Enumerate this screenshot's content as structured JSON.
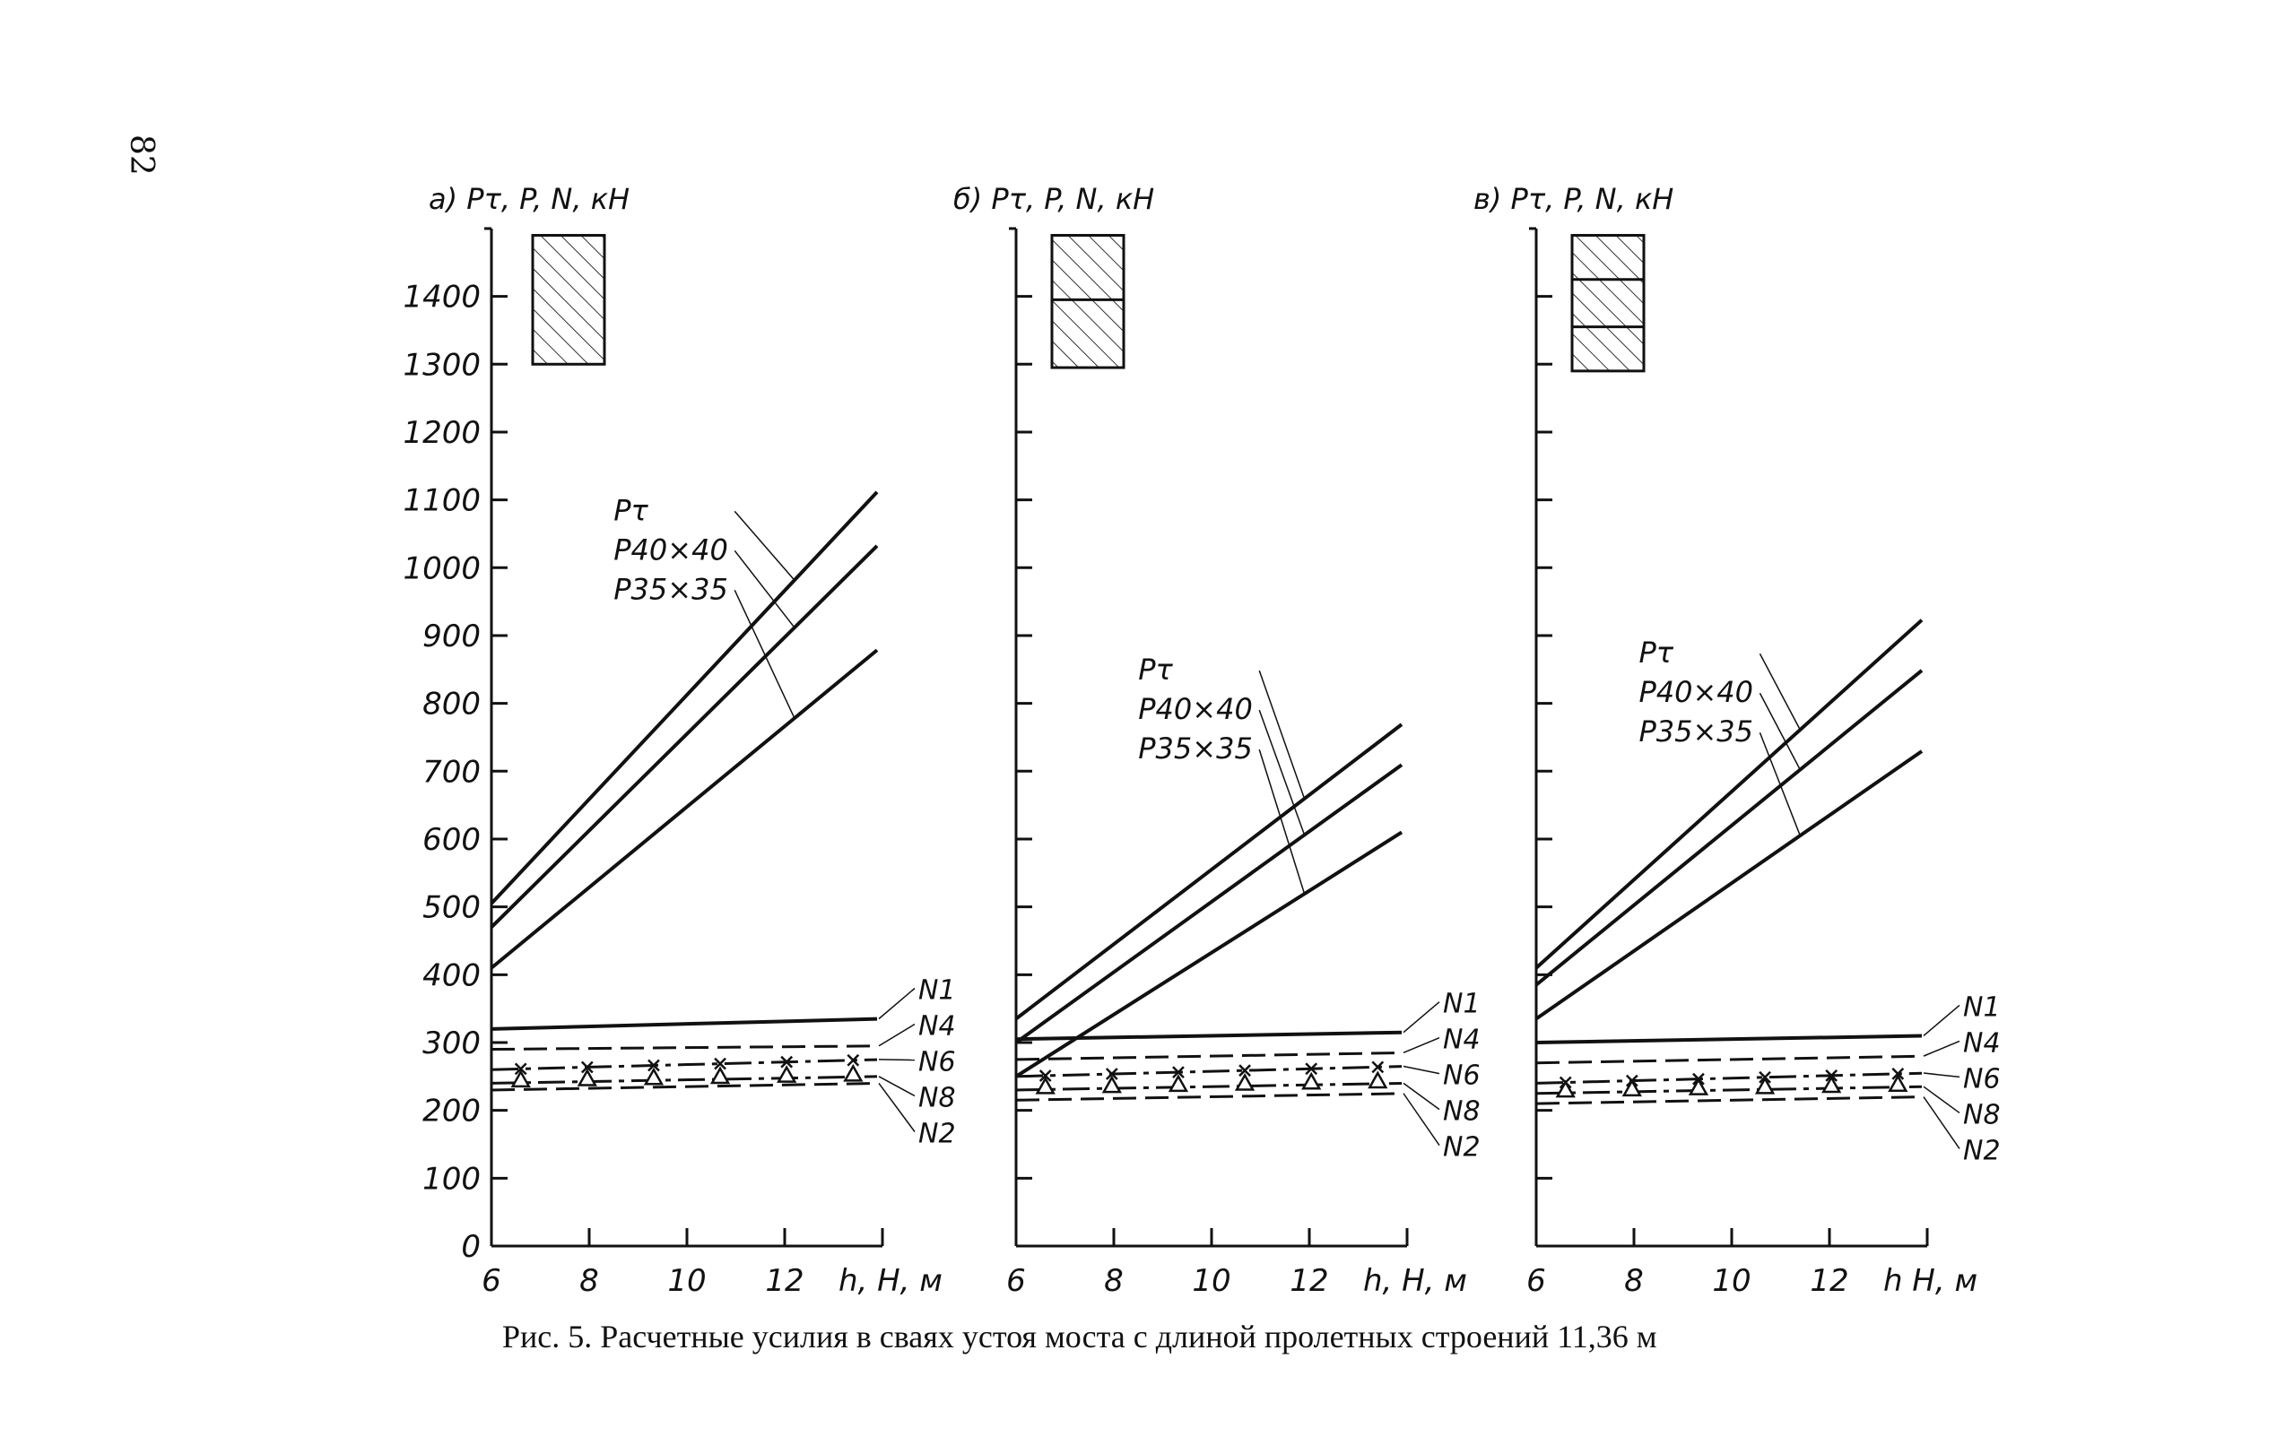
{
  "page_number": "82",
  "caption": "Рис. 5. Расчетные усилия в сваях устоя моста  с длиной пролетных строений 11,36 м",
  "colors": {
    "ink": "#111111",
    "hatch": "#333333",
    "background": "#ffffff"
  },
  "chart_data": [
    {
      "type": "line",
      "panel_label": "а)",
      "ylabel": "Pτ, P, N, кН",
      "xlabel": "h, H, м",
      "x_ticks": [
        "6",
        "8",
        "10",
        "12"
      ],
      "y_ticks": [
        "0",
        "100",
        "200",
        "300",
        "400",
        "500",
        "600",
        "700",
        "800",
        "900",
        "1000",
        "1100",
        "1200",
        "1300",
        "1400"
      ],
      "y_tick_labels_shown": true,
      "xlim": [
        6,
        14
      ],
      "ylim": [
        0,
        1500
      ],
      "range_bars": [
        {
          "y_bottom": 1300,
          "y_top": 1490,
          "dividers": []
        }
      ],
      "series": [
        {
          "name": "Pτ",
          "style": "solid",
          "x": [
            6,
            14
          ],
          "y": [
            505,
            1120
          ]
        },
        {
          "name": "P40×40",
          "style": "solid",
          "x": [
            6,
            14
          ],
          "y": [
            470,
            1040
          ]
        },
        {
          "name": "P35×35",
          "style": "solid",
          "x": [
            6,
            14
          ],
          "y": [
            410,
            885
          ]
        },
        {
          "name": "N1",
          "style": "solid",
          "x": [
            6,
            14
          ],
          "y": [
            320,
            335
          ]
        },
        {
          "name": "N4",
          "style": "dashed",
          "x": [
            6,
            14
          ],
          "y": [
            290,
            295
          ]
        },
        {
          "name": "N6",
          "style": "crosses",
          "x": [
            6,
            14
          ],
          "y": [
            260,
            275
          ]
        },
        {
          "name": "N8",
          "style": "triangles",
          "x": [
            6,
            14
          ],
          "y": [
            240,
            250
          ]
        },
        {
          "name": "N2",
          "style": "dashed",
          "x": [
            6,
            14
          ],
          "y": [
            230,
            240
          ]
        }
      ]
    },
    {
      "type": "line",
      "panel_label": "б)",
      "ylabel": "Pτ, P, N, кН",
      "xlabel": "h, H, м",
      "x_ticks": [
        "6",
        "8",
        "10",
        "12"
      ],
      "y_ticks": [],
      "y_tick_labels_shown": false,
      "xlim": [
        6,
        14
      ],
      "ylim": [
        0,
        1500
      ],
      "range_bars": [
        {
          "y_bottom": 1295,
          "y_top": 1490,
          "dividers": [
            1395
          ]
        }
      ],
      "series": [
        {
          "name": "Pτ",
          "style": "solid",
          "x": [
            6,
            14
          ],
          "y": [
            335,
            775
          ]
        },
        {
          "name": "P40×40",
          "style": "solid",
          "x": [
            6,
            14
          ],
          "y": [
            300,
            715
          ]
        },
        {
          "name": "P35×35",
          "style": "solid",
          "x": [
            6,
            14
          ],
          "y": [
            250,
            615
          ]
        },
        {
          "name": "N1",
          "style": "solid",
          "x": [
            6,
            14
          ],
          "y": [
            305,
            315
          ]
        },
        {
          "name": "N4",
          "style": "dashed",
          "x": [
            6,
            14
          ],
          "y": [
            275,
            285
          ]
        },
        {
          "name": "N6",
          "style": "crosses",
          "x": [
            6,
            14
          ],
          "y": [
            250,
            265
          ]
        },
        {
          "name": "N8",
          "style": "triangles",
          "x": [
            6,
            14
          ],
          "y": [
            230,
            240
          ]
        },
        {
          "name": "N2",
          "style": "dashed",
          "x": [
            6,
            14
          ],
          "y": [
            215,
            225
          ]
        }
      ]
    },
    {
      "type": "line",
      "panel_label": "в)",
      "ylabel": "Pτ, P, N, кН",
      "xlabel": "h H, м",
      "x_ticks": [
        "6",
        "8",
        "10",
        "12"
      ],
      "y_ticks": [],
      "y_tick_labels_shown": false,
      "xlim": [
        6,
        14
      ],
      "ylim": [
        0,
        1500
      ],
      "range_bars": [
        {
          "y_bottom": 1290,
          "y_top": 1490,
          "dividers": [
            1425,
            1355
          ]
        }
      ],
      "series": [
        {
          "name": "Pτ",
          "style": "solid",
          "x": [
            6,
            14
          ],
          "y": [
            410,
            930
          ]
        },
        {
          "name": "P40×40",
          "style": "solid",
          "x": [
            6,
            14
          ],
          "y": [
            385,
            855
          ]
        },
        {
          "name": "P35×35",
          "style": "solid",
          "x": [
            6,
            14
          ],
          "y": [
            335,
            735
          ]
        },
        {
          "name": "N1",
          "style": "solid",
          "x": [
            6,
            14
          ],
          "y": [
            300,
            310
          ]
        },
        {
          "name": "N4",
          "style": "dashed",
          "x": [
            6,
            14
          ],
          "y": [
            270,
            280
          ]
        },
        {
          "name": "N6",
          "style": "crosses",
          "x": [
            6,
            14
          ],
          "y": [
            240,
            255
          ]
        },
        {
          "name": "N8",
          "style": "triangles",
          "x": [
            6,
            14
          ],
          "y": [
            225,
            235
          ]
        },
        {
          "name": "N2",
          "style": "dashed",
          "x": [
            6,
            14
          ],
          "y": [
            210,
            220
          ]
        }
      ]
    }
  ]
}
